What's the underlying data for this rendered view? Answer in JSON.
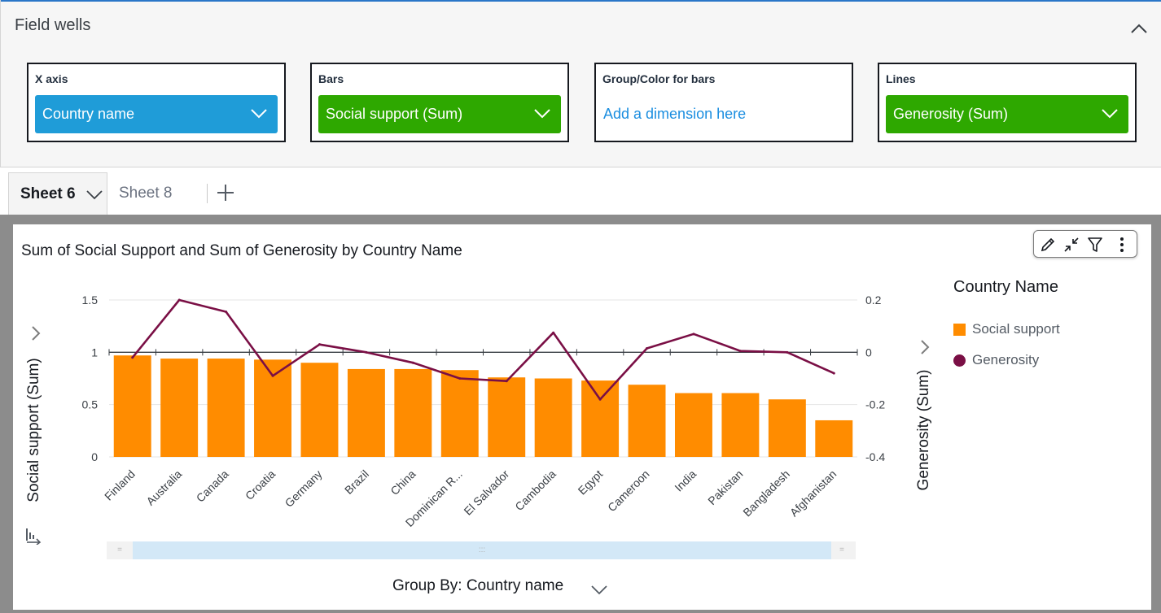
{
  "field_wells": {
    "title": "Field wells",
    "wells": [
      {
        "label": "X axis",
        "value": "Country name",
        "color": "#1f9cd8",
        "border": "#1f9cd8"
      },
      {
        "label": "Bars",
        "value": "Social support (Sum)",
        "color": "#2ea800",
        "border": "#2ea800"
      },
      {
        "label": "Group/Color for bars",
        "placeholder": "Add a dimension here",
        "border": "#1f9cd8"
      },
      {
        "label": "Lines",
        "value": "Generosity (Sum)",
        "color": "#2ea800",
        "border": "#2ea800"
      }
    ]
  },
  "tabs": [
    {
      "label": "Sheet 6",
      "active": true
    },
    {
      "label": "Sheet 8",
      "active": false
    }
  ],
  "visual": {
    "title": "Sum of Social Support and Sum of Generosity by Country Name",
    "legend_title": "Country Name",
    "group_by": "Group By: Country name"
  },
  "chart_data": {
    "type": "bar",
    "title": "Sum of Social Support and Sum of Generosity by Country Name",
    "xlabel": "",
    "ylabel": "Social support (Sum)",
    "y2label": "Generosity (Sum)",
    "ylim": [
      0,
      1.5
    ],
    "y2lim": [
      -0.4,
      0.2
    ],
    "y_ticks": [
      "0",
      "0.5",
      "1",
      "1.5"
    ],
    "y2_ticks": [
      "-0.4",
      "-0.2",
      "0",
      "0.2"
    ],
    "categories": [
      "Finland",
      "Australia",
      "Canada",
      "Croatia",
      "Germany",
      "Brazil",
      "China",
      "Dominican R...",
      "El Salvador",
      "Cambodia",
      "Egypt",
      "Cameroon",
      "India",
      "Pakistan",
      "Bangladesh",
      "Afghanistan"
    ],
    "series": [
      {
        "name": "Social support",
        "kind": "bar",
        "axis": "left",
        "color": "#ff8c00",
        "values": [
          0.97,
          0.94,
          0.94,
          0.93,
          0.9,
          0.84,
          0.84,
          0.83,
          0.76,
          0.75,
          0.73,
          0.69,
          0.61,
          0.61,
          0.55,
          0.35
        ]
      },
      {
        "name": "Generosity",
        "kind": "line",
        "axis": "right",
        "color": "#7a0f45",
        "values": [
          -0.02,
          0.2,
          0.155,
          -0.09,
          0.03,
          0.0,
          -0.04,
          -0.1,
          -0.11,
          0.075,
          -0.18,
          0.015,
          0.07,
          0.005,
          0.0,
          -0.08
        ]
      }
    ],
    "grid": true,
    "legend": "right"
  },
  "icons": {
    "collapse": "chevron-up-icon",
    "edit": "pencil-icon",
    "shrink": "collapse-arrows-icon",
    "filter": "filter-icon",
    "menu": "more-vertical-icon",
    "add_sheet": "plus-icon",
    "drill": "drill-down-icon"
  }
}
